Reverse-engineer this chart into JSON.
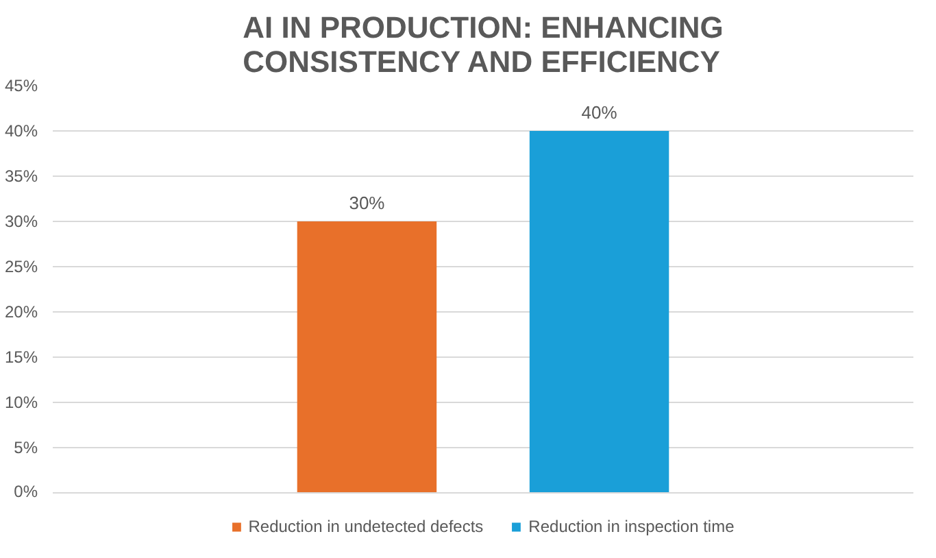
{
  "chart_data": {
    "type": "bar",
    "title": "AI IN PRODUCTION: ENHANCING CONSISTENCY AND EFFICIENCY",
    "categories": [
      null
    ],
    "series": [
      {
        "name": "Reduction in undetected defects",
        "color": "#e8702a",
        "values": [
          30
        ],
        "value_labels": [
          "30%"
        ]
      },
      {
        "name": "Reduction in inspection time",
        "color": "#1a9fd8",
        "values": [
          40
        ],
        "value_labels": [
          "40%"
        ]
      }
    ],
    "ylim": [
      0,
      45
    ],
    "yticks": [
      {
        "value": 0,
        "label": "0%"
      },
      {
        "value": 5,
        "label": "5%"
      },
      {
        "value": 10,
        "label": "10%"
      },
      {
        "value": 15,
        "label": "15%"
      },
      {
        "value": 20,
        "label": "20%"
      },
      {
        "value": 25,
        "label": "25%"
      },
      {
        "value": 30,
        "label": "30%"
      },
      {
        "value": 35,
        "label": "35%"
      },
      {
        "value": 40,
        "label": "40%"
      },
      {
        "value": 45,
        "label": "45%"
      }
    ],
    "grid": "y",
    "legend": "bottom",
    "tick_labels": "y"
  }
}
